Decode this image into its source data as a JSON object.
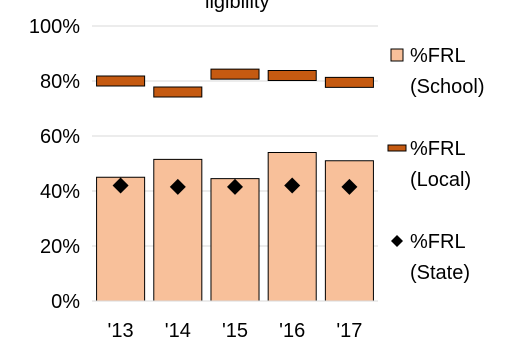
{
  "chart_data": {
    "type": "bar",
    "title_fragment": "ligibility",
    "categories": [
      "'13",
      "'14",
      "'15",
      "'16",
      "'17"
    ],
    "ylim": [
      0,
      100
    ],
    "yticks": [
      0,
      20,
      40,
      60,
      80,
      100
    ],
    "ytick_labels": [
      "0%",
      "20%",
      "40%",
      "60%",
      "80%",
      "100%"
    ],
    "grid": true,
    "legend_position": "right",
    "series": [
      {
        "name": "%FRL (School)",
        "name_lines": [
          "%FRL",
          "(School)"
        ],
        "kind": "bar",
        "color": "#F8C09A",
        "edge_color": "#000000",
        "values": [
          45,
          51.5,
          44.5,
          54,
          51
        ]
      },
      {
        "name": "%FRL (Local)",
        "name_lines": [
          "%FRL",
          "(Local)"
        ],
        "kind": "dash-marker",
        "color": "#C55A11",
        "edge_color": "#000000",
        "values": [
          80,
          76,
          82.5,
          82,
          79.5
        ]
      },
      {
        "name": "%FRL (State)",
        "name_lines": [
          "%FRL",
          "(State)"
        ],
        "kind": "diamond-marker",
        "color": "#000000",
        "values": [
          42,
          41.5,
          41.5,
          42,
          41.5
        ]
      }
    ]
  }
}
